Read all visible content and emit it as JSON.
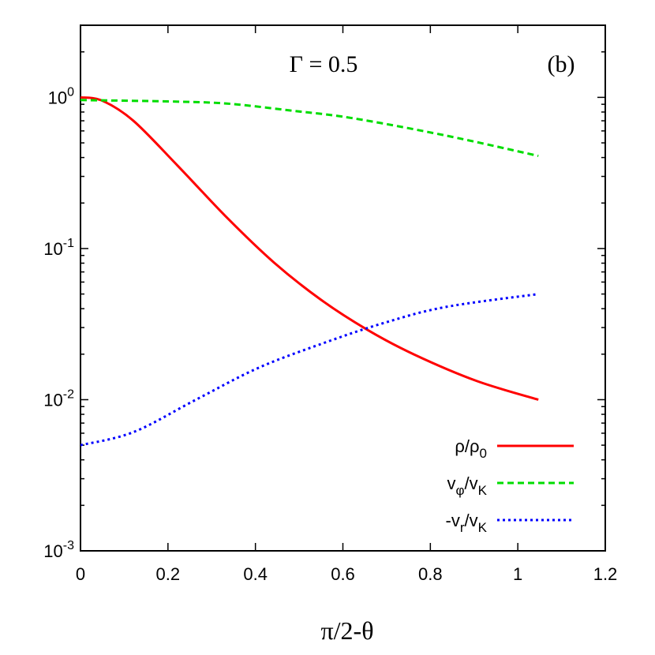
{
  "chart_data": {
    "type": "line",
    "title": "",
    "annotations": {
      "gamma_label": "Γ = 0.5",
      "panel_label": "(b)"
    },
    "xlabel": "π/2-θ",
    "ylabel": "",
    "xlim": [
      0,
      1.2
    ],
    "ylim": [
      0.001,
      3
    ],
    "yscale": "log",
    "grid": false,
    "legend_position": "bottom-right",
    "x_ticks": [
      "0",
      "0.2",
      "0.4",
      "0.6",
      "0.8",
      "1",
      "1.2"
    ],
    "y_ticks": [
      {
        "base": "10",
        "exp": "0"
      },
      {
        "base": "10",
        "exp": "-1"
      },
      {
        "base": "10",
        "exp": "-2"
      },
      {
        "base": "10",
        "exp": "-3"
      }
    ],
    "series": [
      {
        "name": "ρ/ρ0",
        "name_main": "ρ/ρ",
        "name_sub": "0",
        "color": "#ff0000",
        "style": "solid",
        "x": [
          0,
          0.05,
          0.121,
          0.221,
          0.335,
          0.442,
          0.549,
          0.656,
          0.763,
          0.906,
          1.047
        ],
        "y": [
          1.0,
          0.95,
          0.7,
          0.356,
          0.16,
          0.081,
          0.046,
          0.029,
          0.0199,
          0.0133,
          0.01
        ]
      },
      {
        "name": "vφ/vK",
        "name_main": "v",
        "name_sub": "φ",
        "name_main2": "/v",
        "name_sub2": "K",
        "color": "#00dd00",
        "style": "dashed",
        "x": [
          0,
          0.2,
          0.335,
          0.478,
          0.62,
          0.834,
          1.047
        ],
        "y": [
          0.96,
          0.94,
          0.91,
          0.82,
          0.73,
          0.56,
          0.41
        ]
      },
      {
        "name": "-vr/vK",
        "name_main": "-v",
        "name_sub": "r",
        "name_main2": "/v",
        "name_sub2": "K",
        "color": "#0000ff",
        "style": "dotted",
        "x": [
          0,
          0.121,
          0.264,
          0.406,
          0.549,
          0.691,
          0.834,
          1.047
        ],
        "y": [
          0.005,
          0.0061,
          0.01,
          0.0162,
          0.0233,
          0.032,
          0.041,
          0.05
        ]
      }
    ]
  }
}
